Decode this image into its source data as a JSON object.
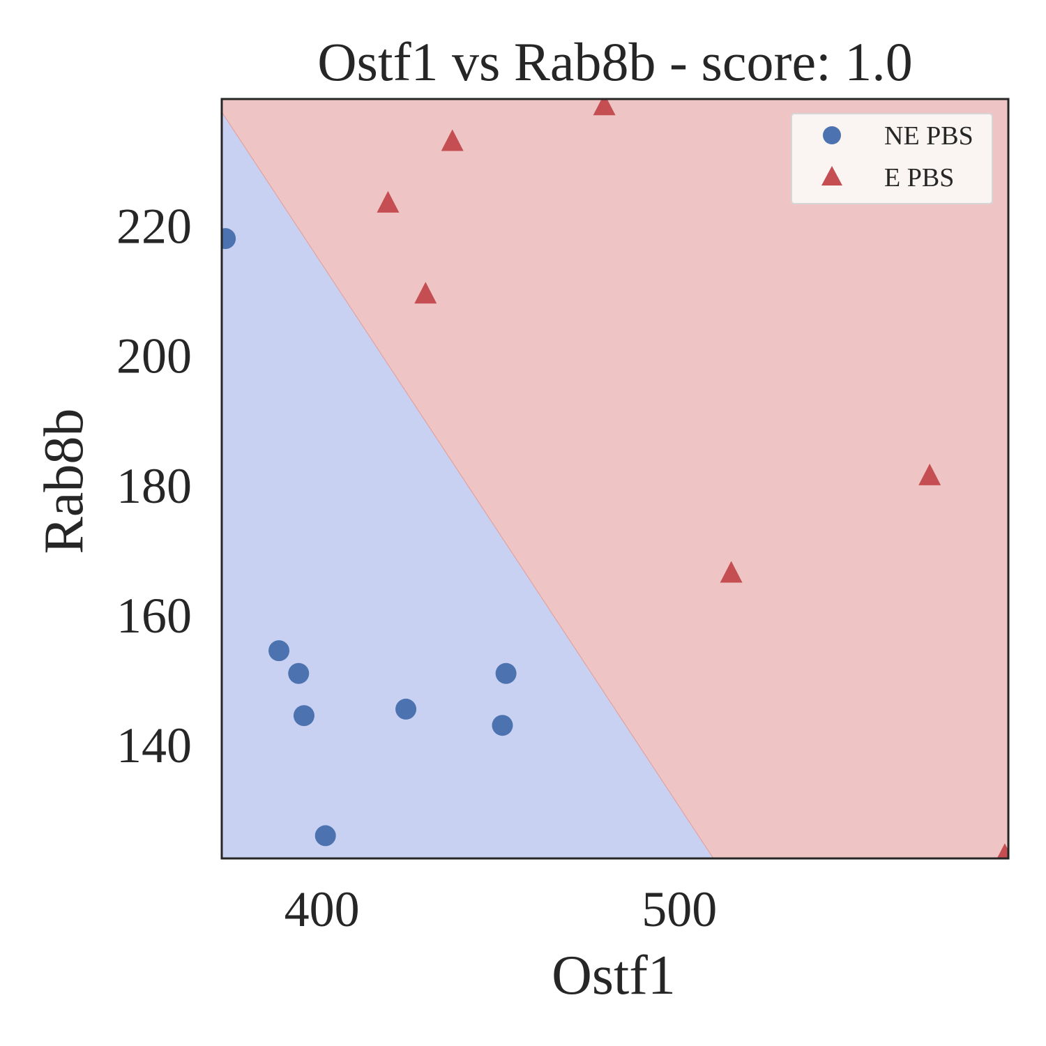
{
  "chart_data": {
    "type": "scatter",
    "title": "Ostf1 vs Rab8b - score: 1.0",
    "xlabel": "Ostf1",
    "ylabel": "Rab8b",
    "xlim": [
      372,
      592
    ],
    "ylim": [
      122.5,
      239.5
    ],
    "xticks": [
      400,
      500
    ],
    "yticks": [
      140,
      160,
      180,
      200,
      220
    ],
    "grid": false,
    "legend_position": "top-right",
    "decision_boundary": [
      [
        372,
        237.5
      ],
      [
        509.5,
        122.5
      ]
    ],
    "regions": [
      {
        "name": "NE PBS",
        "color": "#c8d1f1"
      },
      {
        "name": "E PBS",
        "color": "#eec5c4"
      }
    ],
    "series": [
      {
        "name": "NE PBS",
        "marker": "circle",
        "color": "#4c72b0",
        "x": [
          373,
          388,
          393.5,
          395,
          401,
          423.5,
          450.5,
          451.5
        ],
        "y": [
          218,
          154.5,
          151,
          144.5,
          126,
          145.5,
          143,
          151
        ]
      },
      {
        "name": "E PBS",
        "marker": "triangle",
        "color": "#c44e52",
        "x": [
          418.5,
          429,
          436.5,
          479,
          514.5,
          570,
          591
        ],
        "y": [
          223.5,
          209.5,
          233,
          238.5,
          166.5,
          181.5,
          123
        ]
      }
    ]
  }
}
